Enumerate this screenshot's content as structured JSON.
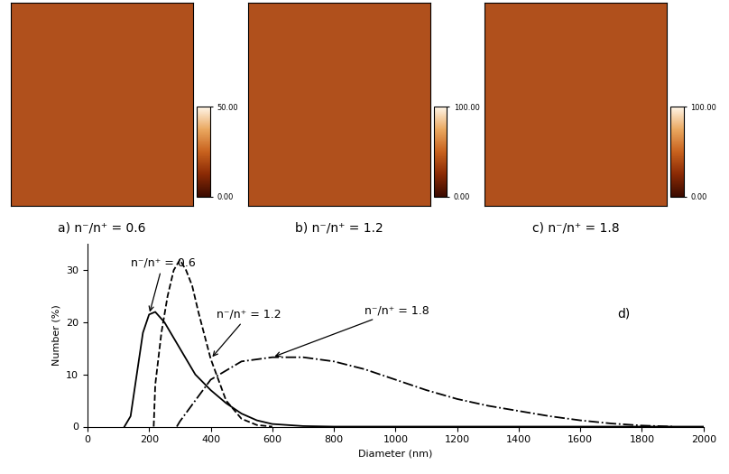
{
  "chart_data": [
    {
      "type": "image",
      "caption": "a) n⁻/n⁺ = 0.6",
      "colorbar_range": [
        0,
        50
      ],
      "colorbar_ticks": [
        {
          "value": 0,
          "label": "0.00"
        },
        {
          "value": 50,
          "label": "50.00"
        }
      ]
    },
    {
      "type": "image",
      "caption": "b) n⁻/n⁺ = 1.2",
      "colorbar_range": [
        0,
        100
      ],
      "colorbar_ticks": [
        {
          "value": 0,
          "label": "0.00"
        },
        {
          "value": 100,
          "label": "100.00"
        }
      ]
    },
    {
      "type": "image",
      "caption": "c) n⁻/n⁺ = 1.8",
      "colorbar_range": [
        0,
        100
      ],
      "colorbar_ticks": [
        {
          "value": 0,
          "label": "0.00"
        },
        {
          "value": 100,
          "label": "100.00"
        }
      ]
    },
    {
      "type": "line",
      "title": "d)",
      "x_label": "Diameter (nm)",
      "y_label": "Number (%)",
      "xlim": [
        0,
        2000
      ],
      "ylim": [
        0,
        35
      ],
      "xticks": [
        0,
        200,
        400,
        600,
        800,
        1000,
        1200,
        1400,
        1600,
        1800,
        2000
      ],
      "yticks": [
        0,
        10,
        20,
        30
      ],
      "series": [
        {
          "name": "n⁻/n⁺ = 0.6",
          "color": "#000000",
          "line_style": "solid",
          "x": [
            120,
            140,
            160,
            180,
            200,
            220,
            250,
            300,
            350,
            400,
            450,
            500,
            550,
            600,
            700,
            800,
            1000,
            2000
          ],
          "values": [
            0,
            2,
            10,
            18,
            21.5,
            22,
            20,
            15,
            10,
            7,
            4.5,
            2.5,
            1.2,
            0.5,
            0.1,
            0,
            0,
            0
          ]
        },
        {
          "name": "n⁻/n⁺ = 1.2",
          "color": "#000000",
          "line_style": "dashed",
          "x": [
            215,
            220,
            240,
            260,
            280,
            300,
            320,
            340,
            360,
            400,
            450,
            500,
            550,
            600
          ],
          "values": [
            0,
            8,
            18,
            25,
            30,
            32,
            30,
            27,
            22,
            13,
            5,
            1.5,
            0.3,
            0
          ]
        },
        {
          "name": "n⁻/n⁺ = 1.8",
          "color": "#000000",
          "line_style": "dashdot",
          "x": [
            290,
            300,
            350,
            400,
            500,
            600,
            700,
            800,
            900,
            1000,
            1100,
            1200,
            1300,
            1400,
            1500,
            1600,
            1700,
            1800,
            1900
          ],
          "values": [
            0,
            1,
            5,
            9,
            12.5,
            13.3,
            13.3,
            12.5,
            11,
            9,
            7,
            5.3,
            4,
            3,
            2,
            1.2,
            0.6,
            0.2,
            0
          ]
        }
      ]
    }
  ]
}
